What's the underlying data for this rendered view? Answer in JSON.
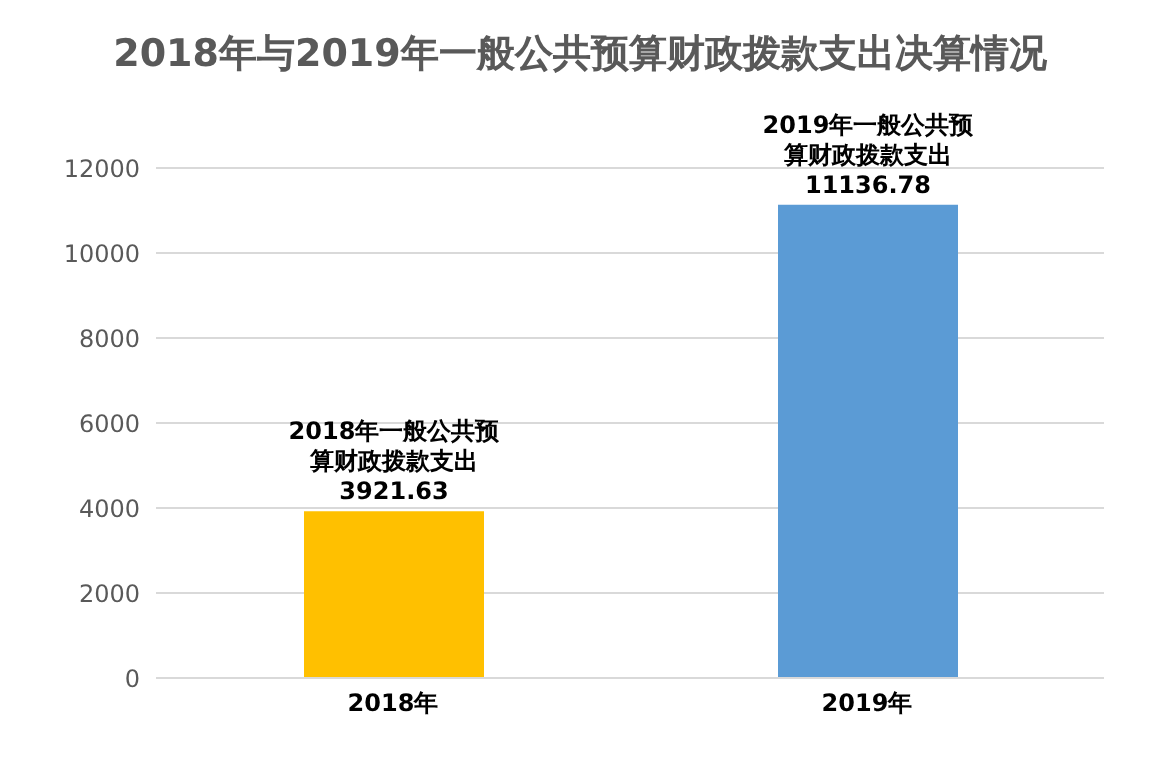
{
  "chart_data": {
    "type": "bar",
    "title": "2018年与2019年一般公共预算财政拨款支出决算情况",
    "categories": [
      "2018年",
      "2019年"
    ],
    "values": [
      3921.63,
      11136.78
    ],
    "colors": [
      "#ffc000",
      "#5b9bd5"
    ],
    "data_labels": true,
    "annotations": [
      {
        "text": "2018年一般公共预算财政拨款支出",
        "x": "2018年",
        "y": 3921.63
      },
      {
        "text": "2019年一般公共预算财政拨款支出",
        "x": "2019年",
        "y": 11136.78
      }
    ],
    "ylim": [
      0,
      12000
    ],
    "yticks": [
      0,
      2000,
      4000,
      6000,
      8000,
      10000,
      12000
    ],
    "grid": "y"
  }
}
